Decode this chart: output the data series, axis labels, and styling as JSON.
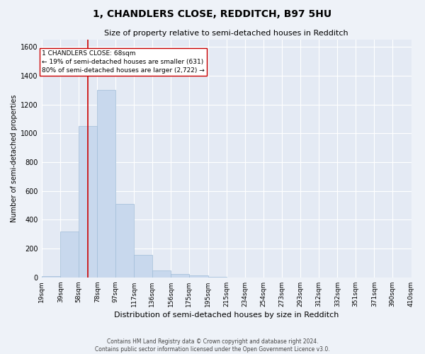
{
  "title": "1, CHANDLERS CLOSE, REDDITCH, B97 5HU",
  "subtitle": "Size of property relative to semi-detached houses in Redditch",
  "xlabel": "Distribution of semi-detached houses by size in Redditch",
  "ylabel": "Number of semi-detached properties",
  "bar_color": "#c8d8ed",
  "bar_edge_color": "#a0bdd8",
  "annotation_line_color": "#cc0000",
  "property_size": 68,
  "annotation_text_line1": "1 CHANDLERS CLOSE: 68sqm",
  "annotation_text_line2": "← 19% of semi-detached houses are smaller (631)",
  "annotation_text_line3": "80% of semi-detached houses are larger (2,722) →",
  "footer_line1": "Contains HM Land Registry data © Crown copyright and database right 2024.",
  "footer_line2": "Contains public sector information licensed under the Open Government Licence v3.0.",
  "bin_edges": [
    19,
    39,
    58,
    78,
    97,
    117,
    136,
    156,
    175,
    195,
    215,
    234,
    254,
    273,
    293,
    312,
    332,
    351,
    371,
    390,
    410
  ],
  "bin_labels": [
    "19sqm",
    "39sqm",
    "58sqm",
    "78sqm",
    "97sqm",
    "117sqm",
    "136sqm",
    "156sqm",
    "175sqm",
    "195sqm",
    "215sqm",
    "234sqm",
    "254sqm",
    "273sqm",
    "293sqm",
    "312sqm",
    "332sqm",
    "351sqm",
    "371sqm",
    "390sqm",
    "410sqm"
  ],
  "bar_heights": [
    10,
    320,
    1050,
    1300,
    510,
    155,
    50,
    25,
    15,
    5,
    0,
    0,
    0,
    0,
    0,
    0,
    0,
    0,
    0,
    0
  ],
  "ylim": [
    0,
    1650
  ],
  "yticks": [
    0,
    200,
    400,
    600,
    800,
    1000,
    1200,
    1400,
    1600
  ],
  "background_color": "#eef2f8",
  "plot_bg_color": "#e4eaf4",
  "grid_color": "#ffffff",
  "title_fontsize": 10,
  "subtitle_fontsize": 8,
  "ylabel_fontsize": 7,
  "xlabel_fontsize": 8,
  "tick_fontsize": 6.5,
  "annotation_fontsize": 6.5,
  "footer_fontsize": 5.5
}
